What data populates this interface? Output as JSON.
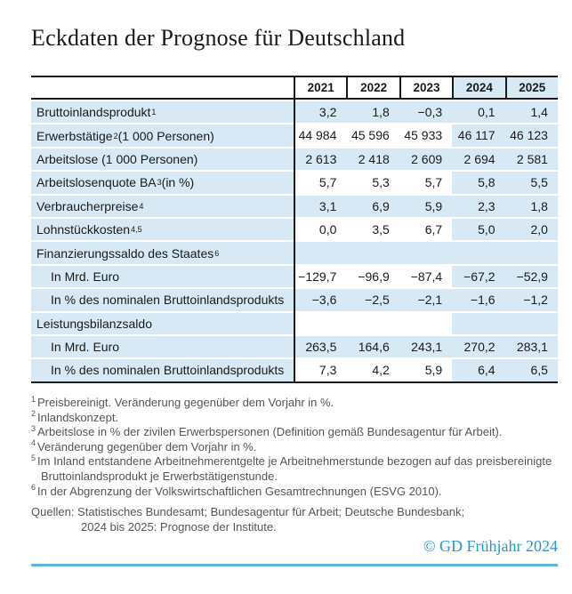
{
  "chart_data": {
    "type": "table",
    "title": "Eckdaten der Prognose für Deutschland",
    "columns": [
      "2021",
      "2022",
      "2023",
      "2024",
      "2025"
    ],
    "forecast_columns": [
      "2024",
      "2025"
    ],
    "rows": [
      {
        "pre": "Bruttoinlandsprodukt",
        "sup": "1",
        "post": "",
        "indent": false,
        "shaded": true,
        "values": [
          "3,2",
          "1,8",
          "−0,3",
          "0,1",
          "1,4"
        ]
      },
      {
        "pre": "Erwerbstätige",
        "sup": "2",
        "post": " (1 000 Personen)",
        "indent": false,
        "shaded": false,
        "values": [
          "44 984",
          "45 596",
          "45 933",
          "46 117",
          "46 123"
        ]
      },
      {
        "pre": "Arbeitslose (1 000 Personen)",
        "sup": "",
        "post": "",
        "indent": false,
        "shaded": true,
        "values": [
          "2 613",
          "2 418",
          "2 609",
          "2 694",
          "2 581"
        ]
      },
      {
        "pre": "Arbeitslosenquote BA",
        "sup": "3",
        "post": " (in %)",
        "indent": false,
        "shaded": false,
        "values": [
          "5,7",
          "5,3",
          "5,7",
          "5,8",
          "5,5"
        ]
      },
      {
        "pre": "Verbraucherpreise",
        "sup": "4",
        "post": "",
        "indent": false,
        "shaded": true,
        "values": [
          "3,1",
          "6,9",
          "5,9",
          "2,3",
          "1,8"
        ]
      },
      {
        "pre": "Lohnstückkosten",
        "sup": "4,5",
        "post": "",
        "indent": false,
        "shaded": false,
        "values": [
          "0,0",
          "3,5",
          "6,7",
          "5,0",
          "2,0"
        ]
      },
      {
        "pre": "Finanzierungssaldo des Staates",
        "sup": "6",
        "post": "",
        "indent": false,
        "shaded": true,
        "values": [
          "",
          "",
          "",
          "",
          ""
        ]
      },
      {
        "pre": "In Mrd. Euro",
        "sup": "",
        "post": "",
        "indent": true,
        "shaded": false,
        "values": [
          "−129,7",
          "−96,9",
          "−87,4",
          "−67,2",
          "−52,9"
        ]
      },
      {
        "pre": "In % des nominalen Bruttoinlandsprodukts",
        "sup": "",
        "post": "",
        "indent": true,
        "shaded": true,
        "values": [
          "−3,6",
          "−2,5",
          "−2,1",
          "−1,6",
          "−1,2"
        ]
      },
      {
        "pre": "Leistungsbilanzsaldo",
        "sup": "",
        "post": "",
        "indent": false,
        "shaded": false,
        "values": [
          "",
          "",
          "",
          "",
          ""
        ]
      },
      {
        "pre": "In Mrd. Euro",
        "sup": "",
        "post": "",
        "indent": true,
        "shaded": true,
        "values": [
          "263,5",
          "164,6",
          "243,1",
          "270,2",
          "283,1"
        ]
      },
      {
        "pre": "In % des nominalen Bruttoinlandsprodukts",
        "sup": "",
        "post": "",
        "indent": true,
        "shaded": false,
        "values": [
          "7,3",
          "4,2",
          "5,9",
          "6,4",
          "6,5"
        ]
      }
    ],
    "footnotes": [
      {
        "marker": "1",
        "text": "Preisbereinigt. Veränderung gegenüber dem Vorjahr in %."
      },
      {
        "marker": "2",
        "text": "Inlandskonzept."
      },
      {
        "marker": "3",
        "text": "Arbeitslose in % der zivilen Erwerbspersonen (Definition gemäß Bundesagentur für Arbeit)."
      },
      {
        "marker": "4",
        "text": "Veränderung gegenüber dem Vorjahr in %."
      },
      {
        "marker": "5",
        "text": "Im Inland entstandene Arbeitnehmerentgelte je Arbeitnehmerstunde bezogen auf das preisbereinigte Bruttoinlandsprodukt je Erwerbstätigenstunde."
      },
      {
        "marker": "6",
        "text": "In der Abgrenzung der Volkswirtschaftlichen Gesamtrechnungen (ESVG 2010)."
      }
    ],
    "sources": [
      "Quellen: Statistisches Bundesamt; Bundesagentur für Arbeit; Deutsche Bundesbank;",
      "2024 bis 2025: Prognose der Institute."
    ],
    "copyright": "© GD Frühjahr 2024",
    "colors": {
      "cell_blue": "#d6e9f5",
      "border_dark": "#1a1a1a",
      "note_gray": "#555555",
      "copyright_blue": "#2496c9",
      "rule_blue": "#59b6dd"
    },
    "layout": {
      "grid": false,
      "shaded_label_column": true,
      "forecast_columns_always_shaded": true
    }
  }
}
